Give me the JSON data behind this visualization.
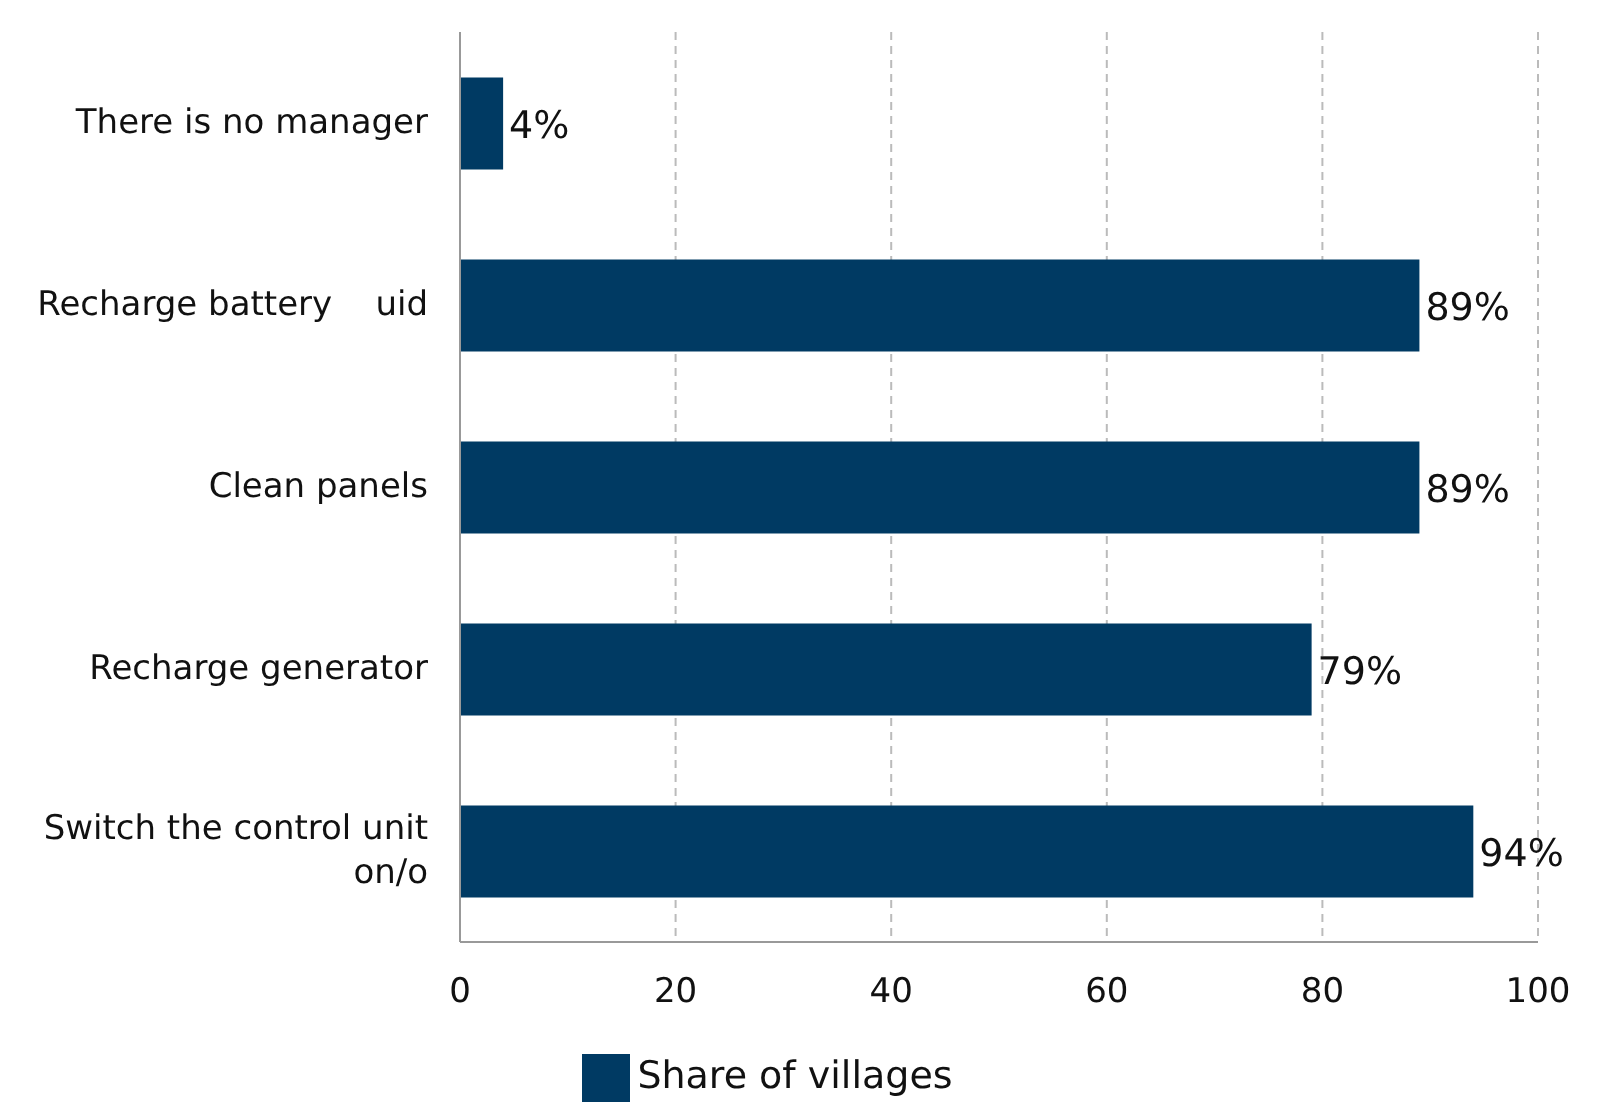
{
  "chart_data": {
    "type": "bar",
    "orientation": "horizontal",
    "categories": [
      "There is no manager",
      "Recharge battery    uid",
      "Clean panels",
      "Recharge generator",
      "Switch the control unit on/o"
    ],
    "series": [
      {
        "name": "Share of villages",
        "color": "#003a63",
        "values": [
          4,
          89,
          89,
          79,
          94
        ],
        "value_labels": [
          "4%",
          "89%",
          "89%",
          "79%",
          "94%"
        ]
      }
    ],
    "xlim": [
      0,
      100
    ],
    "xticks": [
      0,
      20,
      40,
      60,
      80,
      100
    ],
    "grid": "x",
    "legend": "bottom"
  }
}
